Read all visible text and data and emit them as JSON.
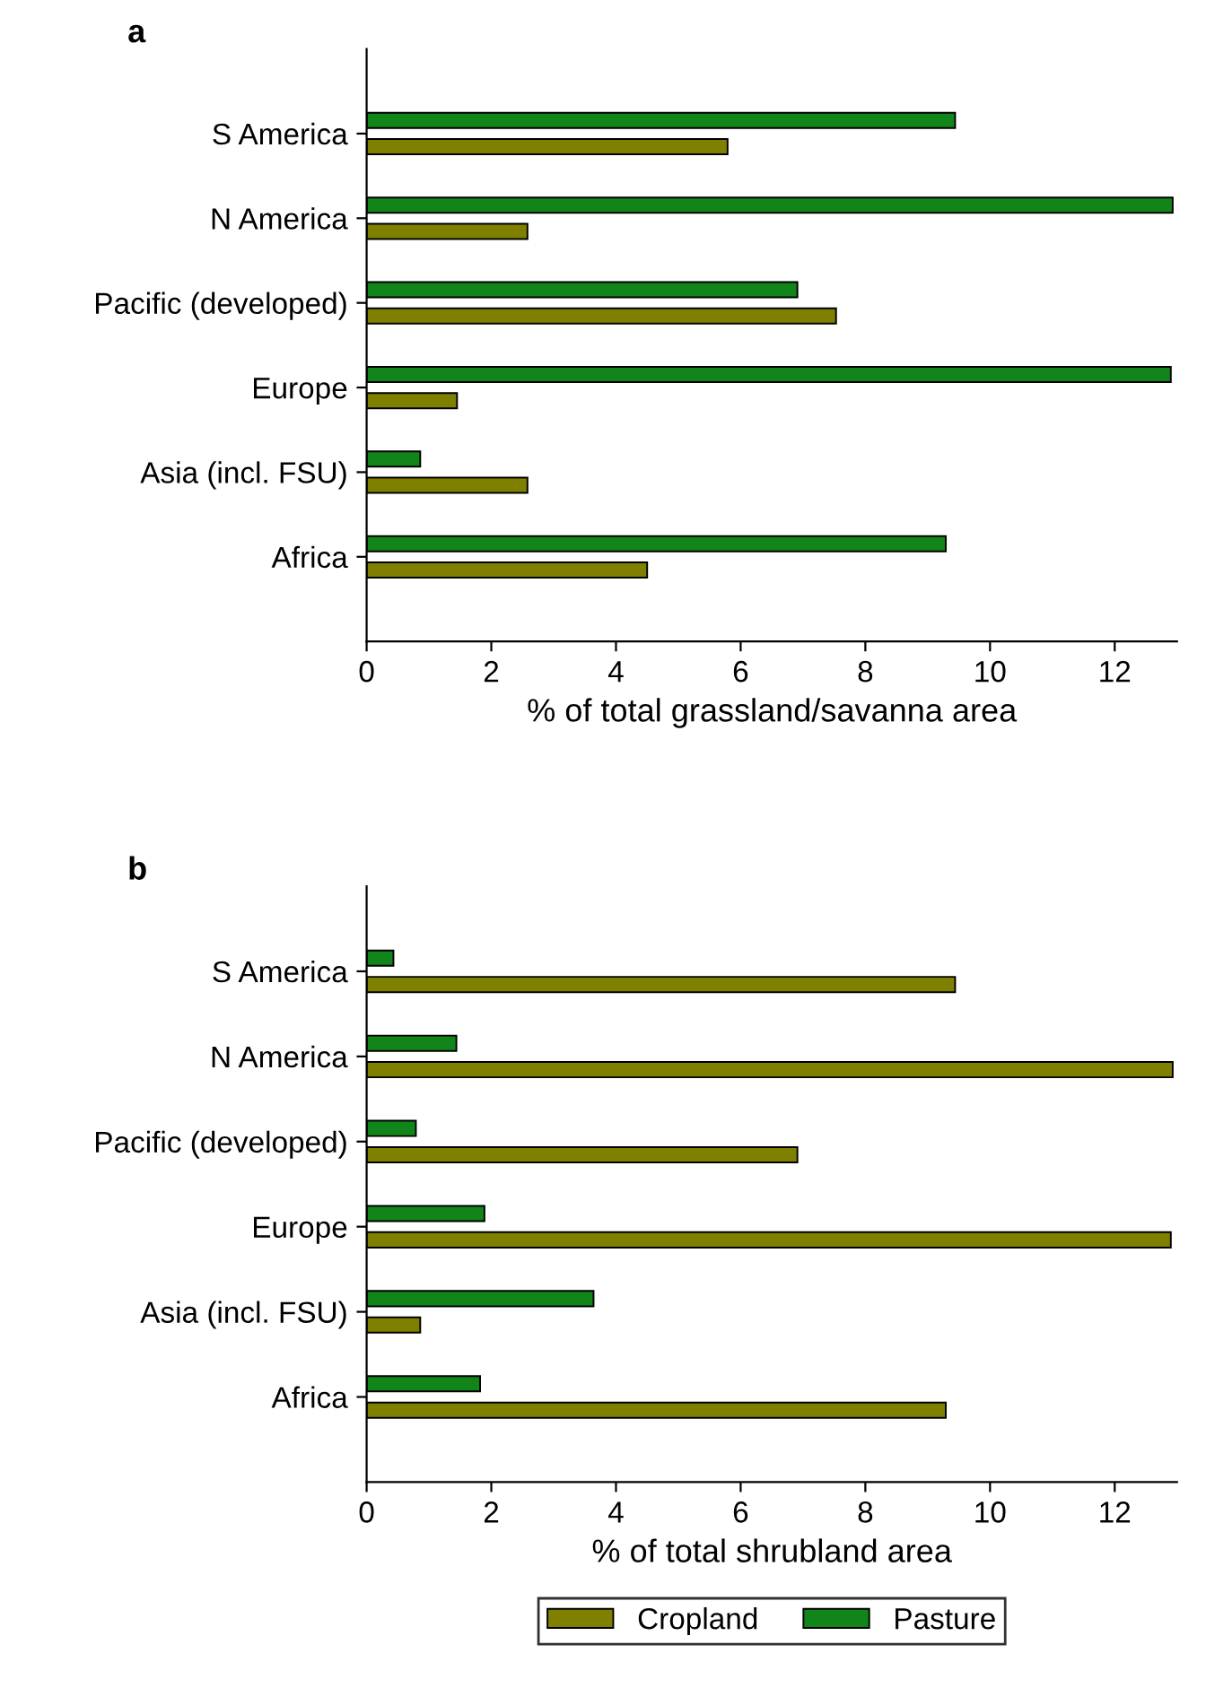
{
  "chart_data": [
    {
      "type": "bar",
      "orientation": "horizontal",
      "title": "a",
      "xlabel": "% of total grassland/savanna area",
      "categories": [
        "S America",
        "N America",
        "Pacific (developed)",
        "Europe",
        "Asia (incl. FSU)",
        "Africa"
      ],
      "series": [
        {
          "color": "#808000",
          "values": [
            5.79,
            2.58,
            7.53,
            1.45,
            2.58,
            4.5
          ]
        },
        {
          "color": "#12851a",
          "values": [
            9.44,
            12.93,
            6.91,
            12.9,
            0.86,
            9.29
          ]
        }
      ],
      "xlim": [
        0,
        13
      ],
      "xticks": [
        0,
        2,
        4,
        6,
        8,
        10,
        12
      ],
      "grid": false
    },
    {
      "type": "bar",
      "orientation": "horizontal",
      "title": "b",
      "xlabel": "% of total shrubland area",
      "categories": [
        "S America",
        "N America",
        "Pacific (developed)",
        "Europe",
        "Asia (incl. FSU)",
        "Africa"
      ],
      "series": [
        {
          "name": "Cropland",
          "color": "#808000",
          "values": [
            9.44,
            12.93,
            6.91,
            12.9,
            0.86,
            9.29
          ]
        },
        {
          "name": "Pasture",
          "color": "#12851a",
          "values": [
            0.43,
            1.44,
            0.79,
            1.89,
            3.64,
            1.82
          ]
        }
      ],
      "xlim": [
        0,
        13
      ],
      "xticks": [
        0,
        2,
        4,
        6,
        8,
        10,
        12
      ],
      "grid": false,
      "legend": "bottom"
    }
  ]
}
